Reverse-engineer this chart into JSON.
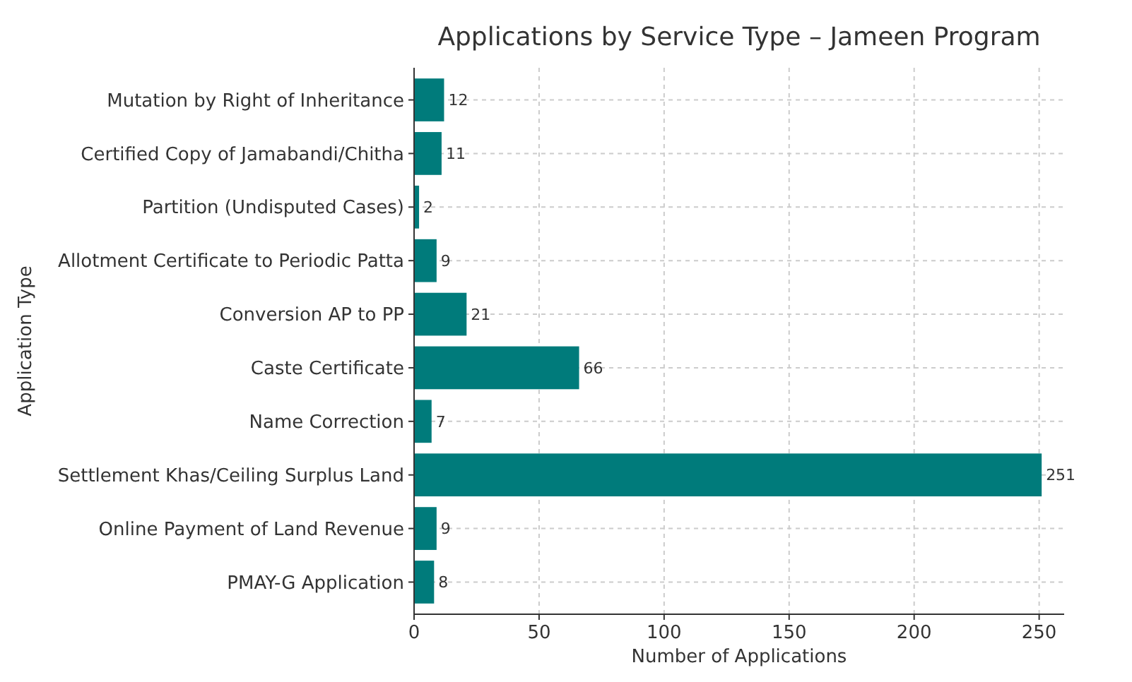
{
  "chart_data": {
    "type": "bar",
    "orientation": "horizontal",
    "title": "Applications by Service Type – Jameen Program",
    "xlabel": "Number of Applications",
    "ylabel": "Application Type",
    "categories": [
      "Mutation by Right of Inheritance",
      "Certified Copy of Jamabandi/Chitha",
      "Partition (Undisputed Cases)",
      "Allotment Certificate to Periodic Patta",
      "Conversion AP to PP",
      "Caste Certificate",
      "Name Correction",
      "Settlement Khas/Ceiling Surplus Land",
      "Online Payment of Land Revenue",
      "PMAY-G Application"
    ],
    "values": [
      12,
      11,
      2,
      9,
      21,
      66,
      7,
      251,
      9,
      8
    ],
    "color": "#007b7b",
    "data_labels": true,
    "xlim": [
      0,
      260
    ],
    "xticks": [
      0,
      50,
      100,
      150,
      200,
      250
    ],
    "grid": true,
    "line_style": "dashed"
  }
}
